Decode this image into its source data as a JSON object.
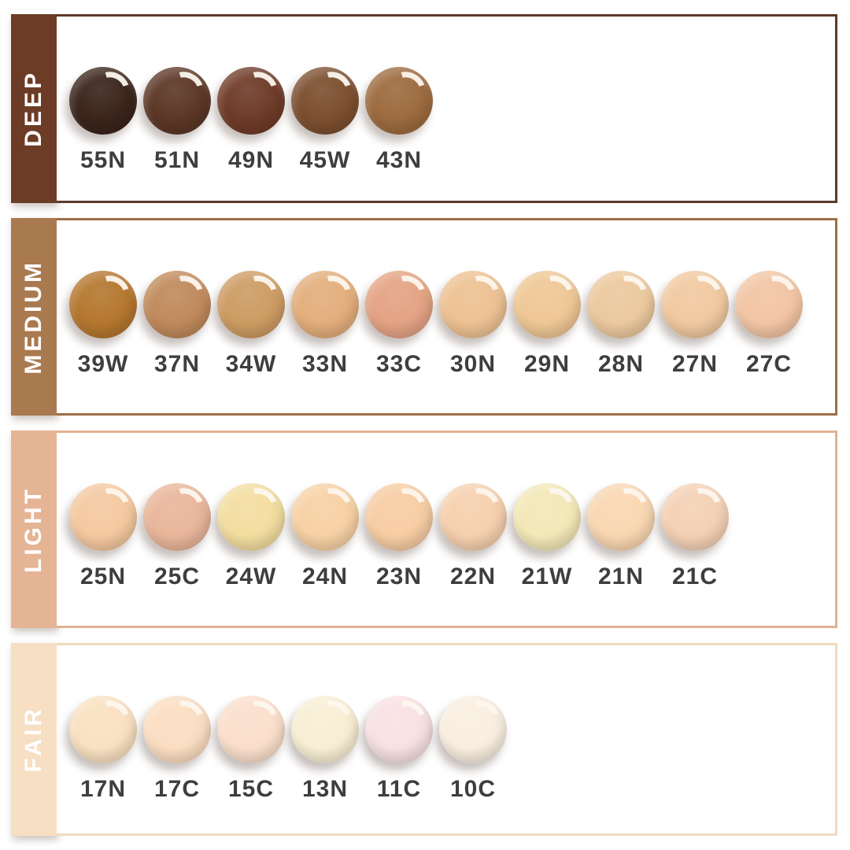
{
  "page": {
    "background": "#FFFFFF",
    "code_text_color": "#3E3E3E",
    "category_text_color": "#FFFFFF"
  },
  "rows": [
    {
      "label": "DEEP",
      "sidebar_color": "#6C3C26",
      "border_color": "#5D3A29",
      "shades": [
        {
          "code": "55N",
          "color": "#3A241B"
        },
        {
          "code": "51N",
          "color": "#5C3726"
        },
        {
          "code": "49N",
          "color": "#6F3B28"
        },
        {
          "code": "45W",
          "color": "#7C4F2F"
        },
        {
          "code": "43N",
          "color": "#9D6B3F"
        }
      ]
    },
    {
      "label": "MEDIUM",
      "sidebar_color": "#A97A50",
      "border_color": "#9C6F45",
      "shades": [
        {
          "code": "39W",
          "color": "#B5772F"
        },
        {
          "code": "37N",
          "color": "#C08A5C"
        },
        {
          "code": "34W",
          "color": "#CD9C63"
        },
        {
          "code": "33N",
          "color": "#E3AE7C"
        },
        {
          "code": "33C",
          "color": "#E4A384"
        },
        {
          "code": "30N",
          "color": "#EDC293"
        },
        {
          "code": "29N",
          "color": "#EFC795"
        },
        {
          "code": "28N",
          "color": "#ECC99E"
        },
        {
          "code": "27N",
          "color": "#F1C9A0"
        },
        {
          "code": "27C",
          "color": "#F2C5A4"
        }
      ]
    },
    {
      "label": "LIGHT",
      "sidebar_color": "#E5B495",
      "border_color": "#E0B191",
      "shades": [
        {
          "code": "25N",
          "color": "#F4C9A0"
        },
        {
          "code": "25C",
          "color": "#E9B69B"
        },
        {
          "code": "24W",
          "color": "#F3DEA0"
        },
        {
          "code": "24N",
          "color": "#F8D1A5"
        },
        {
          "code": "23N",
          "color": "#F7CDA4"
        },
        {
          "code": "22N",
          "color": "#F6D0AE"
        },
        {
          "code": "21W",
          "color": "#F3E8B7"
        },
        {
          "code": "21N",
          "color": "#F9D7B2"
        },
        {
          "code": "21C",
          "color": "#F4D1B5"
        }
      ]
    },
    {
      "label": "FAIR",
      "sidebar_color": "#F6DFC3",
      "border_color": "#F0DABE",
      "shades": [
        {
          "code": "17N",
          "color": "#F9E1C1"
        },
        {
          "code": "17C",
          "color": "#FBDEC2"
        },
        {
          "code": "15C",
          "color": "#FBDFCC"
        },
        {
          "code": "13N",
          "color": "#F8EED4"
        },
        {
          "code": "11C",
          "color": "#F8E1E3"
        },
        {
          "code": "10C",
          "color": "#F9EEE0"
        }
      ]
    }
  ]
}
